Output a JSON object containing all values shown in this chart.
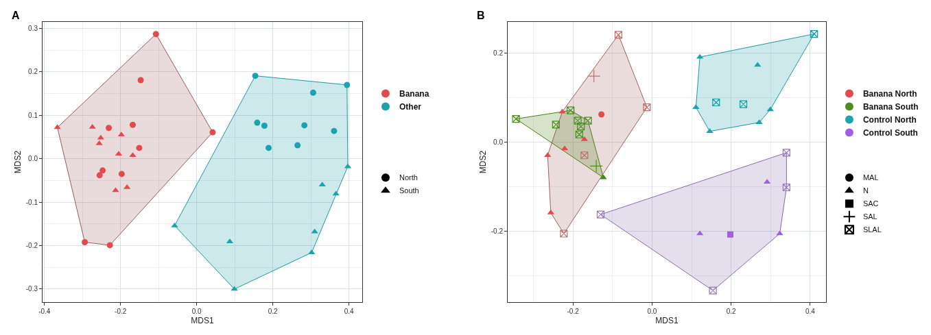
{
  "chart_data": [
    {
      "type": "scatter",
      "title": "A",
      "xlabel": "MDS1",
      "ylabel": "MDS2",
      "xlim": [
        -0.405,
        0.435
      ],
      "ylim": [
        -0.33,
        0.315
      ],
      "xticks": [
        -0.4,
        -0.2,
        {
          "value": 0,
          "label": "0.0"
        },
        0.2,
        0.4
      ],
      "yticks": [
        -0.3,
        -0.2,
        -0.1,
        {
          "value": 0,
          "label": "0.0"
        },
        0.1,
        0.2,
        0.3
      ],
      "grid": true,
      "legend": "right",
      "series": [
        {
          "type": "area",
          "color": "#9a5a5a",
          "x": [
            -0.366,
            -0.107,
            0.042,
            -0.228,
            -0.294
          ],
          "values": [
            0.072,
            0.287,
            0.061,
            -0.199,
            -0.192
          ]
        },
        {
          "type": "area",
          "color": "#1a9aa4",
          "x": [
            -0.058,
            0.154,
            0.395,
            0.397,
            0.302,
            0.099
          ],
          "values": [
            -0.154,
            0.191,
            0.17,
            -0.018,
            -0.216,
            -0.3
          ]
        },
        {
          "name": "Banana",
          "color": "#e34a4f",
          "marker": "circle",
          "x": [
            -0.107,
            -0.147,
            0.042,
            -0.231,
            -0.168,
            -0.151,
            -0.247,
            -0.255,
            -0.197,
            -0.294,
            -0.228
          ],
          "values": [
            0.287,
            0.181,
            0.061,
            0.071,
            0.078,
            0.025,
            -0.027,
            -0.038,
            -0.035,
            -0.192,
            -0.199
          ]
        },
        {
          "color": "#e34a4f",
          "marker": "triangle",
          "x": [
            -0.366,
            -0.274,
            -0.252,
            -0.256,
            -0.198,
            -0.205,
            -0.168,
            -0.213,
            -0.183
          ],
          "values": [
            0.072,
            0.073,
            0.048,
            0.035,
            0.055,
            0.011,
            0.008,
            -0.073,
            -0.066
          ]
        },
        {
          "name": "Other",
          "color": "#1aa3ad",
          "marker": "circle",
          "x": [
            0.154,
            0.395,
            0.306,
            0.159,
            0.178,
            0.283,
            0.361,
            0.189,
            0.265
          ],
          "values": [
            0.191,
            0.17,
            0.152,
            0.083,
            0.076,
            0.077,
            0.064,
            0.025,
            0.031
          ]
        },
        {
          "color": "#1aa3ad",
          "marker": "triangle",
          "x": [
            0.397,
            0.33,
            0.366,
            0.31,
            0.302,
            0.087,
            0.099,
            -0.058
          ],
          "values": [
            -0.018,
            -0.06,
            -0.081,
            -0.168,
            -0.216,
            -0.191,
            -0.3,
            -0.154
          ]
        },
        {
          "name": "North",
          "color": "#000000",
          "marker": "circle",
          "x": [
            null
          ],
          "values": [
            null
          ]
        },
        {
          "name": "South",
          "color": "#000000",
          "marker": "triangle",
          "x": [
            null
          ],
          "values": [
            null
          ]
        }
      ]
    },
    {
      "type": "scatter",
      "title": "B",
      "xlabel": "MDS1",
      "ylabel": "MDS2",
      "xlim": [
        -0.365,
        0.44
      ],
      "ylim": [
        -0.36,
        0.27
      ],
      "xticks": [
        -0.2,
        {
          "value": 0,
          "label": "0.0"
        },
        0.2,
        0.4
      ],
      "yticks": [
        -0.2,
        {
          "value": 0,
          "label": "0.0"
        },
        0.2
      ],
      "grid": true,
      "legend": "right",
      "series": [
        {
          "type": "area",
          "color": "#a0605c",
          "x": [
            -0.085,
            -0.013,
            -0.223,
            -0.256,
            -0.264,
            -0.227
          ],
          "values": [
            0.241,
            0.078,
            -0.206,
            -0.159,
            -0.03,
            0.068
          ]
        },
        {
          "type": "area",
          "color": "#4a7d12",
          "x": [
            -0.344,
            -0.206,
            -0.162,
            -0.123
          ],
          "values": [
            0.052,
            0.071,
            0.048,
            -0.08
          ]
        },
        {
          "type": "area",
          "color": "#1a9aa4",
          "x": [
            0.121,
            0.41,
            0.299,
            0.271,
            0.146,
            0.111
          ],
          "values": [
            0.191,
            0.243,
            0.073,
            0.044,
            0.024,
            0.078
          ]
        },
        {
          "type": "area",
          "color": "#8a6aa8",
          "x": [
            -0.13,
            0.34,
            0.34,
            0.323,
            0.154
          ],
          "values": [
            -0.163,
            -0.024,
            -0.102,
            -0.206,
            -0.334
          ]
        },
        {
          "name": "Banana North",
          "color": "#e34a4f",
          "marker": "circle",
          "x": [
            -0.128
          ],
          "values": [
            0.062
          ]
        },
        {
          "color": "#e34a4f",
          "marker": "triangle",
          "x": [
            -0.227,
            -0.171,
            -0.221,
            -0.264,
            -0.256
          ],
          "values": [
            0.068,
            0.006,
            -0.015,
            -0.03,
            -0.159
          ]
        },
        {
          "color": "#c0706c",
          "marker": "cross",
          "x": [
            -0.147
          ],
          "values": [
            0.148
          ]
        },
        {
          "color": "#c0706c",
          "x": [
            -0.085,
            -0.013,
            -0.171,
            -0.223
          ],
          "values": [
            0.241,
            0.078,
            -0.03,
            -0.206
          ]
        },
        {
          "name": "Banana South",
          "color": "#4a8f1a",
          "marker": "circle",
          "x": [
            null
          ],
          "values": [
            null
          ]
        },
        {
          "color": "#3f8a1a",
          "marker": "triangle",
          "x": [
            -0.123
          ],
          "values": [
            -0.08
          ]
        },
        {
          "color": "#4a8f1a",
          "marker": "cross",
          "x": [
            -0.141
          ],
          "values": [
            -0.054
          ]
        },
        {
          "color": "#4a8f1a",
          "x": [
            -0.344,
            -0.206,
            -0.243,
            -0.188,
            -0.162,
            -0.18,
            -0.184
          ],
          "values": [
            0.052,
            0.071,
            0.039,
            0.048,
            0.048,
            0.035,
            0.017
          ]
        },
        {
          "name": "Control North",
          "color": "#1aa3ad",
          "marker": "circle",
          "x": [
            null
          ],
          "values": [
            null
          ]
        },
        {
          "color": "#1aa3ad",
          "marker": "triangle",
          "x": [
            0.121,
            0.267,
            0.111,
            0.299,
            0.271,
            0.146
          ],
          "values": [
            0.191,
            0.173,
            0.078,
            0.073,
            0.044,
            0.024
          ]
        },
        {
          "color": "#1a9aa4",
          "x": [
            0.162,
            0.231,
            0.41
          ],
          "values": [
            0.089,
            0.085,
            0.243
          ]
        },
        {
          "name": "Control South",
          "color": "#a05ee0",
          "marker": "circle",
          "x": [
            null
          ],
          "values": [
            null
          ]
        },
        {
          "color": "#a05ee0",
          "marker": "triangle",
          "x": [
            0.291,
            0.121,
            0.323
          ],
          "values": [
            -0.09,
            -0.206,
            -0.206
          ]
        },
        {
          "color": "#a05ee0",
          "marker": "square",
          "x": [
            0.198
          ],
          "values": [
            -0.208
          ]
        },
        {
          "color": "#9a7ab8",
          "x": [
            0.34,
            0.34,
            -0.13,
            0.154
          ],
          "values": [
            -0.024,
            -0.102,
            -0.163,
            -0.334
          ]
        },
        {
          "name": "MAL",
          "color": "#000000",
          "marker": "circle",
          "x": [
            null
          ],
          "values": [
            null
          ]
        },
        {
          "name": "N",
          "color": "#000000",
          "marker": "triangle",
          "x": [
            null
          ],
          "values": [
            null
          ]
        },
        {
          "name": "SAC",
          "color": "#000000",
          "marker": "square",
          "x": [
            null
          ],
          "values": [
            null
          ]
        },
        {
          "name": "SAL",
          "color": "#000000",
          "marker": "cross",
          "x": [
            null
          ],
          "values": [
            null
          ]
        },
        {
          "name": "SLAL",
          "color": "#000000",
          "x": [
            null
          ],
          "values": [
            null
          ]
        }
      ]
    }
  ]
}
